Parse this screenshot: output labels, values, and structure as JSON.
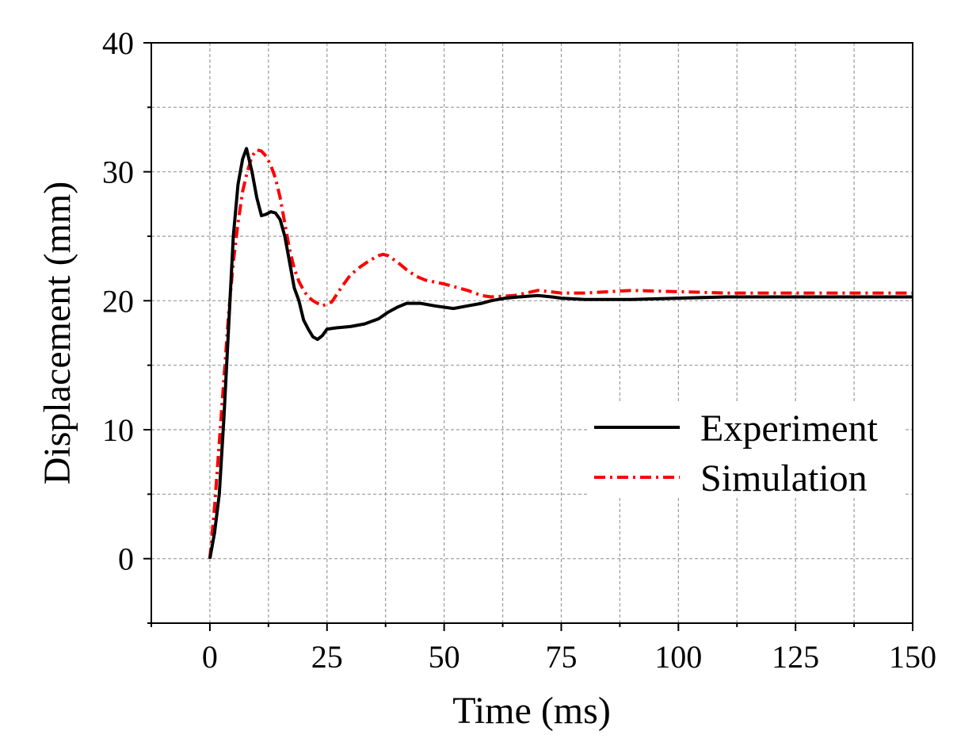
{
  "chart_data": {
    "type": "line",
    "title": "",
    "xlabel": "Time (ms)",
    "ylabel": "Displacement (mm)",
    "xlim": [
      -12.5,
      150
    ],
    "ylim": [
      -5,
      40
    ],
    "xticks": [
      0,
      25,
      50,
      75,
      100,
      125,
      150
    ],
    "yticks": [
      0,
      10,
      20,
      30,
      40
    ],
    "xtick_labels": [
      "0",
      "25",
      "50",
      "75",
      "100",
      "125",
      "150"
    ],
    "ytick_labels": [
      "0",
      "10",
      "20",
      "30",
      "40"
    ],
    "grid": true,
    "legend_position": "center-right",
    "series": [
      {
        "name": "Experiment",
        "color": "#000000",
        "style": "solid",
        "x": [
          0,
          1,
          2,
          3,
          4,
          5,
          6,
          7,
          7.8,
          9,
          10,
          11,
          12,
          13,
          14,
          15,
          16,
          17,
          18,
          19,
          20,
          21,
          22,
          23,
          24,
          25,
          27,
          30,
          33,
          36,
          38,
          40,
          42,
          45,
          48,
          50,
          52,
          55,
          58,
          60,
          63,
          66,
          70,
          73,
          75,
          80,
          85,
          90,
          100,
          110,
          120,
          130,
          140,
          150
        ],
        "y": [
          0,
          2,
          5,
          11,
          18,
          25,
          29,
          31,
          31.8,
          30,
          28,
          26.6,
          26.7,
          26.9,
          26.8,
          26.3,
          25,
          23,
          21,
          20,
          18.5,
          17.8,
          17.2,
          17,
          17.3,
          17.8,
          17.9,
          18,
          18.2,
          18.6,
          19.1,
          19.5,
          19.8,
          19.8,
          19.6,
          19.5,
          19.4,
          19.6,
          19.8,
          20,
          20.2,
          20.3,
          20.4,
          20.3,
          20.2,
          20.1,
          20.1,
          20.1,
          20.2,
          20.3,
          20.3,
          20.3,
          20.3,
          20.3
        ]
      },
      {
        "name": "Simulation",
        "color": "#ff0000",
        "style": "dash-dot",
        "x": [
          0,
          1,
          2,
          3,
          4,
          5,
          6,
          7,
          8,
          9,
          10,
          11,
          12,
          13,
          14,
          15,
          16,
          17,
          18,
          19,
          20,
          21,
          22,
          23,
          24,
          26,
          28,
          30,
          32,
          34,
          36,
          37,
          38,
          40,
          42,
          44,
          46,
          50,
          55,
          58,
          60,
          65,
          70,
          75,
          80,
          90,
          100,
          110,
          120,
          130,
          140,
          150
        ],
        "y": [
          0,
          4,
          9,
          14,
          19,
          23,
          26,
          28.5,
          30,
          31.2,
          31.7,
          31.6,
          31.2,
          30.5,
          29.5,
          28,
          26,
          24,
          22.5,
          21.5,
          20.8,
          20.3,
          20,
          19.8,
          19.6,
          19.9,
          21,
          22,
          22.6,
          23.1,
          23.5,
          23.6,
          23.5,
          23,
          22.4,
          21.9,
          21.6,
          21.3,
          20.8,
          20.4,
          20.3,
          20.4,
          20.8,
          20.6,
          20.6,
          20.8,
          20.7,
          20.6,
          20.6,
          20.6,
          20.6,
          20.6
        ]
      }
    ]
  }
}
